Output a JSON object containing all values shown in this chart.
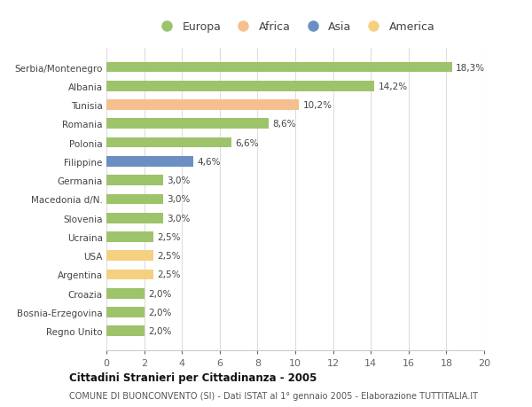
{
  "countries": [
    "Serbia/Montenegro",
    "Albania",
    "Tunisia",
    "Romania",
    "Polonia",
    "Filippine",
    "Germania",
    "Macedonia d/N.",
    "Slovenia",
    "Ucraina",
    "USA",
    "Argentina",
    "Croazia",
    "Bosnia-Erzegovina",
    "Regno Unito"
  ],
  "values": [
    18.3,
    14.2,
    10.2,
    8.6,
    6.6,
    4.6,
    3.0,
    3.0,
    3.0,
    2.5,
    2.5,
    2.5,
    2.0,
    2.0,
    2.0
  ],
  "labels": [
    "18,3%",
    "14,2%",
    "10,2%",
    "8,6%",
    "6,6%",
    "4,6%",
    "3,0%",
    "3,0%",
    "3,0%",
    "2,5%",
    "2,5%",
    "2,5%",
    "2,0%",
    "2,0%",
    "2,0%"
  ],
  "continents": [
    "Europa",
    "Europa",
    "Africa",
    "Europa",
    "Europa",
    "Asia",
    "Europa",
    "Europa",
    "Europa",
    "Europa",
    "America",
    "America",
    "Europa",
    "Europa",
    "Europa"
  ],
  "continent_colors": {
    "Europa": "#9DC36B",
    "Africa": "#F5BF8E",
    "Asia": "#6B8FC2",
    "America": "#F5D080"
  },
  "legend_order": [
    "Europa",
    "Africa",
    "Asia",
    "America"
  ],
  "title": "Cittadini Stranieri per Cittadinanza - 2005",
  "subtitle": "COMUNE DI BUONCONVENTO (SI) - Dati ISTAT al 1° gennaio 2005 - Elaborazione TUTTITALIA.IT",
  "xlim": [
    0,
    20
  ],
  "xticks": [
    0,
    2,
    4,
    6,
    8,
    10,
    12,
    14,
    16,
    18,
    20
  ],
  "bg_color": "#ffffff",
  "grid_color": "#dddddd",
  "bar_height": 0.55
}
